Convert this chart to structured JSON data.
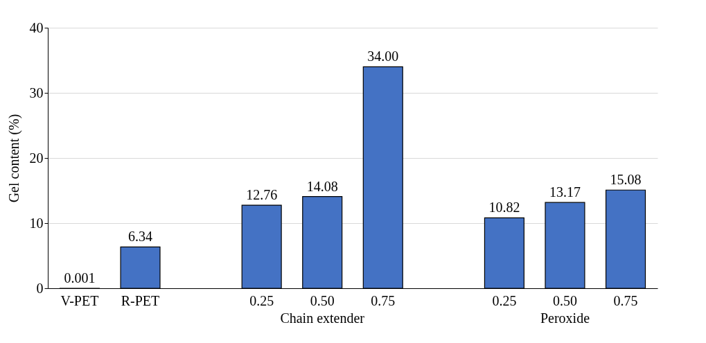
{
  "chart_data": {
    "type": "bar",
    "ylabel": "Gel content (%)",
    "categories": [
      "V-PET",
      "R-PET",
      null,
      "0.25",
      "0.50",
      "0.75",
      null,
      "0.25",
      "0.50",
      "0.75"
    ],
    "values": [
      0.001,
      6.34,
      null,
      12.76,
      14.08,
      34.0,
      null,
      10.82,
      13.17,
      15.08
    ],
    "value_labels": [
      "0.001",
      "6.34",
      null,
      "12.76",
      "14.08",
      "34.00",
      null,
      "10.82",
      "13.17",
      "15.08"
    ],
    "color": "#4472c4",
    "ylim": [
      0,
      40
    ],
    "yticks": [
      0,
      10,
      20,
      30,
      40
    ],
    "grid": "y",
    "annotations": [
      "Chain extender",
      "Peroxide"
    ]
  }
}
